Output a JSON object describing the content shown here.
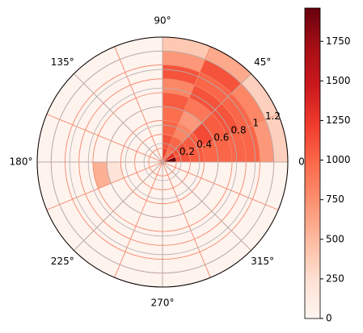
{
  "chart_data": {
    "type": "polar-heatmap",
    "colormap": [
      "#fff5f0",
      "#fee0d2",
      "#fcbba1",
      "#fc9272",
      "#fb6a4a",
      "#ef3b2c",
      "#cb181d",
      "#a50f15",
      "#67000d"
    ],
    "edgecolor": "#f4866a",
    "r_edges": [
      0,
      0.15,
      0.3,
      0.45,
      0.6,
      0.75,
      0.9,
      1.05,
      1.2,
      1.35
    ],
    "theta_edges": [
      0,
      22.5,
      45,
      67.5,
      90,
      112.5,
      135,
      157.5,
      180,
      202.5,
      225,
      247.5,
      270,
      292.5,
      315,
      337.5,
      360
    ],
    "counts": [
      [
        1950,
        1300,
        900,
        1200,
        20,
        20,
        20,
        20,
        20,
        20,
        20,
        20,
        20,
        20,
        20,
        20
      ],
      [
        1100,
        1100,
        1000,
        1100,
        20,
        20,
        20,
        20,
        20,
        20,
        20,
        20,
        20,
        20,
        20,
        20
      ],
      [
        1050,
        1050,
        800,
        1000,
        20,
        20,
        20,
        20,
        20,
        20,
        20,
        20,
        20,
        20,
        20,
        20
      ],
      [
        1000,
        1150,
        700,
        950,
        20,
        20,
        20,
        20,
        200,
        20,
        20,
        20,
        20,
        20,
        20,
        20
      ],
      [
        1000,
        1050,
        900,
        1050,
        20,
        20,
        20,
        20,
        550,
        20,
        20,
        20,
        20,
        20,
        20,
        20
      ],
      [
        1000,
        1100,
        1100,
        800,
        20,
        20,
        20,
        20,
        20,
        20,
        20,
        20,
        20,
        20,
        20,
        20
      ],
      [
        1000,
        1000,
        1000,
        1100,
        20,
        20,
        20,
        20,
        20,
        20,
        20,
        20,
        20,
        20,
        20,
        20
      ],
      [
        700,
        800,
        1100,
        700,
        20,
        20,
        20,
        20,
        20,
        20,
        20,
        20,
        20,
        20,
        20,
        20
      ],
      [
        350,
        350,
        600,
        400,
        20,
        20,
        20,
        20,
        20,
        20,
        20,
        20,
        20,
        20,
        20,
        20
      ]
    ],
    "ylim": [
      0,
      1.35
    ],
    "yticks": [
      0.2,
      0.4,
      0.6,
      0.8,
      1.0,
      1.2
    ],
    "xticks": [
      {
        "value": 0,
        "label": "0°"
      },
      {
        "value": 45,
        "label": "45°"
      },
      {
        "value": 90,
        "label": "90°"
      },
      {
        "value": 135,
        "label": "135°"
      },
      {
        "value": 180,
        "label": "180°"
      },
      {
        "value": 225,
        "label": "225°"
      },
      {
        "value": 270,
        "label": "270°"
      },
      {
        "value": 315,
        "label": "315°"
      }
    ],
    "clim": [
      0,
      1960
    ],
    "colorbar_ticks": [
      0,
      250,
      500,
      750,
      1000,
      1250,
      1500,
      1750
    ],
    "grid": true
  }
}
